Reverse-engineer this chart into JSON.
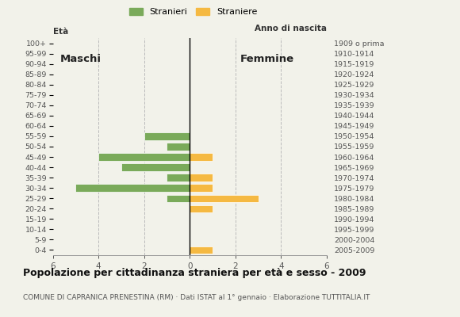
{
  "age_groups": [
    "0-4",
    "5-9",
    "10-14",
    "15-19",
    "20-24",
    "25-29",
    "30-34",
    "35-39",
    "40-44",
    "45-49",
    "50-54",
    "55-59",
    "60-64",
    "65-69",
    "70-74",
    "75-79",
    "80-84",
    "85-89",
    "90-94",
    "95-99",
    "100+"
  ],
  "birth_years": [
    "2005-2009",
    "2000-2004",
    "1995-1999",
    "1990-1994",
    "1985-1989",
    "1980-1984",
    "1975-1979",
    "1970-1974",
    "1965-1969",
    "1960-1964",
    "1955-1959",
    "1950-1954",
    "1945-1949",
    "1940-1944",
    "1935-1939",
    "1930-1934",
    "1925-1929",
    "1920-1924",
    "1915-1919",
    "1910-1914",
    "1909 o prima"
  ],
  "males": [
    0,
    0,
    0,
    0,
    0,
    1,
    5,
    1,
    3,
    4,
    1,
    2,
    0,
    0,
    0,
    0,
    0,
    0,
    0,
    0,
    0
  ],
  "females": [
    1,
    0,
    0,
    0,
    1,
    3,
    1,
    1,
    0,
    1,
    0,
    0,
    0,
    0,
    0,
    0,
    0,
    0,
    0,
    0,
    0
  ],
  "male_color": "#7aaa5a",
  "female_color": "#f5b942",
  "background_color": "#f2f2ea",
  "bar_edge_color": "white",
  "title": "Popolazione per cittadinanza straniera per età e sesso - 2009",
  "subtitle": "COMUNE DI CAPRANICA PRENESTINA (RM) · Dati ISTAT al 1° gennaio · Elaborazione TUTTITALIA.IT",
  "label_eta": "Età",
  "label_anno": "Anno di nascita",
  "legend_male": "Stranieri",
  "legend_female": "Straniere",
  "xlim": 6,
  "grid_color": "#bbbbbb",
  "label_maschi": "Maschi",
  "label_femmine": "Femmine"
}
